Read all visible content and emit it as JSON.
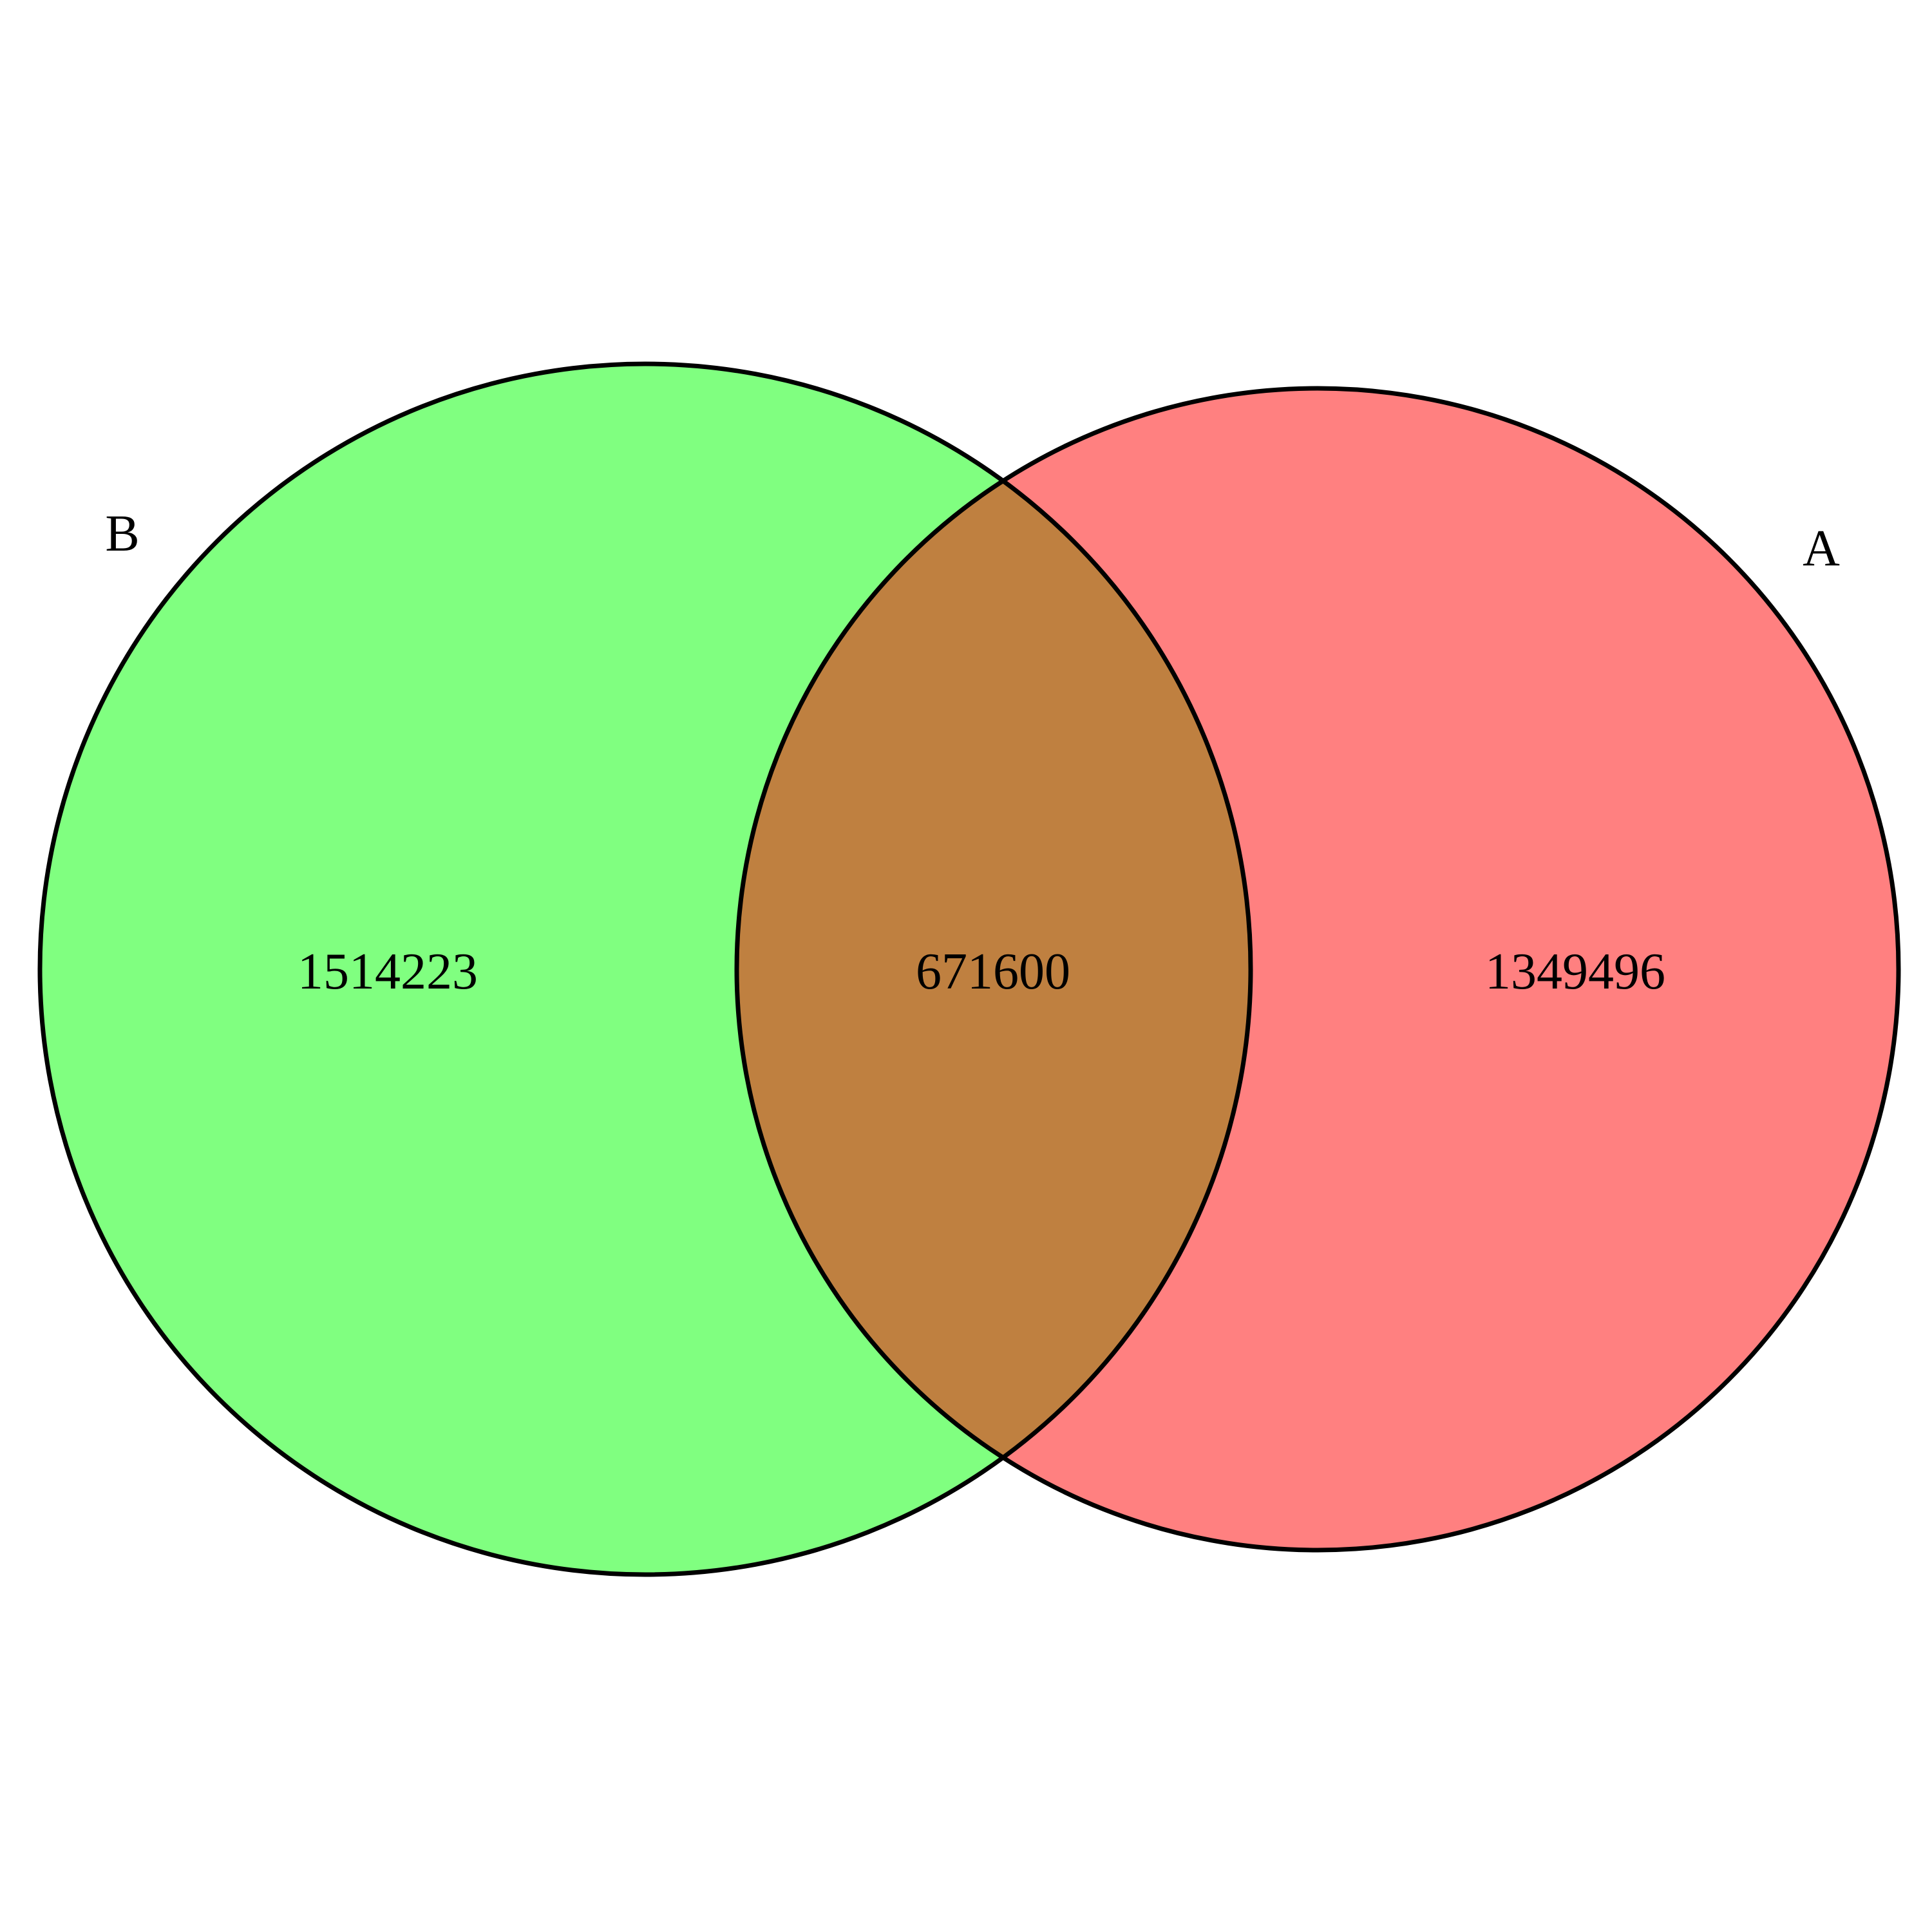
{
  "sets": [
    {
      "name": "B",
      "only_count": "1514223",
      "color": "#80FF80"
    },
    {
      "name": "A",
      "only_count": "1349496",
      "color": "#FF8080"
    }
  ],
  "intersection": {
    "count": "671600",
    "color": "#BF8040"
  },
  "outline_color": "#000000"
}
